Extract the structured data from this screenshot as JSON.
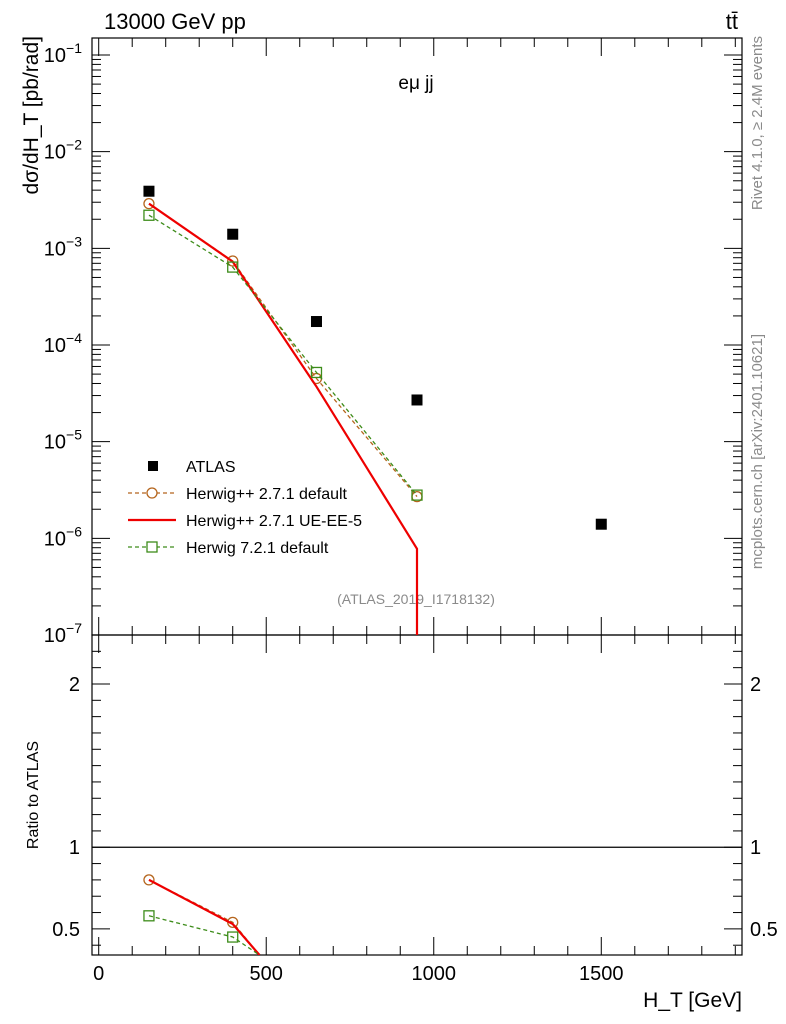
{
  "header": {
    "left": "13000 GeV pp",
    "right": "tt̄"
  },
  "side_labels": {
    "rivet": "Rivet 4.1.0, ≥ 2.4M events",
    "mcplots": "mcplots.cern.ch [arXiv:2401.10621]"
  },
  "chart_data": [
    {
      "type": "scatter",
      "panel": "main",
      "title": "eμ jj",
      "xlabel": "H_T [GeV]",
      "ylabel": "dσ/dH_T [pb/rad]",
      "annotation": "(ATLAS_2019_I1718132)",
      "xlim": [
        -20,
        1920
      ],
      "ylim": [
        1e-07,
        0.15
      ],
      "yscale": "log",
      "x_ticks": [
        "0",
        "500",
        "1000",
        "1500"
      ],
      "y_ticks": [
        {
          "base": "10",
          "exp": "−1"
        },
        {
          "base": "10",
          "exp": "−2"
        },
        {
          "base": "10",
          "exp": "−3"
        },
        {
          "base": "10",
          "exp": "−4"
        },
        {
          "base": "10",
          "exp": "−5"
        },
        {
          "base": "10",
          "exp": "−6"
        },
        {
          "base": "10",
          "exp": "−7"
        }
      ],
      "legend_position": "lower-left",
      "series": [
        {
          "name": "ATLAS",
          "style": "data-square",
          "color": "#000000",
          "x": [
            150,
            400,
            650,
            950,
            1500
          ],
          "y": [
            0.0039,
            0.0014,
            0.000175,
            2.7e-05,
            1.4e-06
          ]
        },
        {
          "name": "Herwig++ 2.7.1 default",
          "style": "dashed-circle",
          "color": "#b5651d",
          "x": [
            150,
            400,
            650,
            950
          ],
          "y": [
            0.0029,
            0.00074,
            4.5e-05,
            2.7e-06
          ]
        },
        {
          "name": "Herwig++ 2.7.1 UE-EE-5",
          "style": "solid",
          "color": "#ee0000",
          "x": [
            150,
            400,
            650,
            950
          ],
          "y": [
            0.0029,
            0.00073,
            3.7e-05,
            7.8e-07
          ]
        },
        {
          "name": "Herwig 7.2.1 default",
          "style": "dashed-square",
          "color": "#3d8c1a",
          "x": [
            150,
            400,
            650,
            950
          ],
          "y": [
            0.0022,
            0.00064,
            5.2e-05,
            2.8e-06
          ]
        }
      ]
    },
    {
      "type": "line",
      "panel": "ratio",
      "ylabel": "Ratio to ATLAS",
      "xlim": [
        -20,
        1920
      ],
      "ylim": [
        0.34,
        2.3
      ],
      "y_ticks": [
        "2",
        "1",
        "0.5"
      ],
      "reference": 1,
      "series": [
        {
          "name": "Herwig++ 2.7.1 default",
          "color": "#b5651d",
          "x": [
            150,
            400,
            480
          ],
          "y": [
            0.8,
            0.54,
            0.34
          ]
        },
        {
          "name": "Herwig++ 2.7.1 UE-EE-5",
          "color": "#ee0000",
          "x": [
            150,
            400,
            480
          ],
          "y": [
            0.8,
            0.53,
            0.34
          ]
        },
        {
          "name": "Herwig 7.2.1 default",
          "color": "#3d8c1a",
          "x": [
            150,
            400,
            480
          ],
          "y": [
            0.58,
            0.45,
            0.34
          ]
        }
      ]
    }
  ]
}
